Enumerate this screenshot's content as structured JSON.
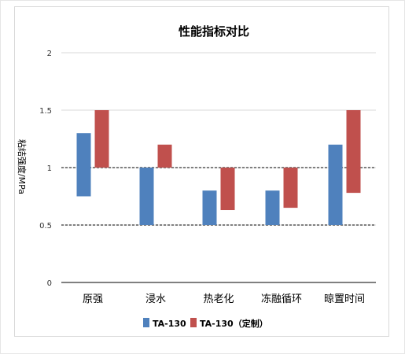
{
  "chart_data": {
    "type": "bar",
    "title": "性能指标对比",
    "ylabel": "粘结强度/MPa",
    "xlabel": "",
    "ylim": [
      0,
      2
    ],
    "yticks": [
      "0",
      "0.5",
      "1",
      "1.5",
      "2"
    ],
    "tick_values": [
      0,
      0.5,
      1,
      1.5,
      2
    ],
    "categories": [
      "原强",
      "浸水",
      "热老化",
      "冻融循环",
      "晾置时间"
    ],
    "series": [
      {
        "name": "TA-130",
        "color": "#4f81bd",
        "ranges": [
          [
            0.75,
            1.3
          ],
          [
            0.5,
            1.0
          ],
          [
            0.5,
            0.8
          ],
          [
            0.5,
            0.8
          ],
          [
            0.5,
            1.2
          ]
        ]
      },
      {
        "name": "TA-130（定制）",
        "color": "#c0504d",
        "ranges": [
          [
            1.0,
            1.5
          ],
          [
            1.0,
            1.2
          ],
          [
            0.63,
            1.0
          ],
          [
            0.65,
            1.0
          ],
          [
            0.78,
            1.5
          ]
        ]
      }
    ],
    "reference_lines": [
      1.0,
      0.5
    ],
    "grid": true,
    "legend_position": "bottom"
  }
}
